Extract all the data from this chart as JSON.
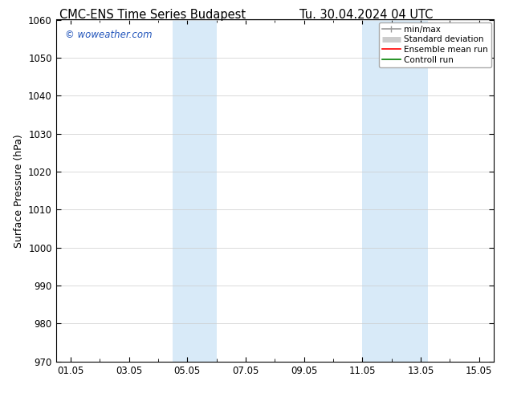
{
  "title_left": "CMC-ENS Time Series Budapest",
  "title_right": "Tu. 30.04.2024 04 UTC",
  "ylabel": "Surface Pressure (hPa)",
  "ylim": [
    970,
    1060
  ],
  "yticks": [
    970,
    980,
    990,
    1000,
    1010,
    1020,
    1030,
    1040,
    1050,
    1060
  ],
  "xtick_labels": [
    "01.05",
    "03.05",
    "05.05",
    "07.05",
    "09.05",
    "11.05",
    "13.05",
    "15.05"
  ],
  "xtick_positions": [
    1,
    3,
    5,
    7,
    9,
    11,
    13,
    15
  ],
  "xlim": [
    0.5,
    15.5
  ],
  "shaded_bands": [
    {
      "x_start": 4.5,
      "x_end": 6.0
    },
    {
      "x_start": 11.0,
      "x_end": 13.25
    }
  ],
  "shaded_color": "#d8eaf8",
  "watermark_text": "© woweather.com",
  "watermark_color": "#2255bb",
  "legend_items": [
    {
      "label": "min/max",
      "color": "#999999",
      "lw": 1.2,
      "style": "line_with_caps"
    },
    {
      "label": "Standard deviation",
      "color": "#cccccc",
      "lw": 5,
      "style": "thick_line"
    },
    {
      "label": "Ensemble mean run",
      "color": "red",
      "lw": 1.2,
      "style": "line"
    },
    {
      "label": "Controll run",
      "color": "green",
      "lw": 1.2,
      "style": "line"
    }
  ],
  "bg_color": "#ffffff",
  "grid_color": "#cccccc",
  "title_fontsize": 10.5,
  "ylabel_fontsize": 9,
  "tick_fontsize": 8.5,
  "watermark_fontsize": 8.5,
  "legend_fontsize": 7.5
}
